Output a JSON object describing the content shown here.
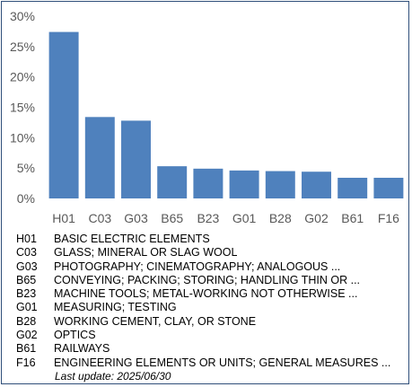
{
  "chart_data": {
    "type": "bar",
    "categories": [
      "H01",
      "C03",
      "G03",
      "B65",
      "B23",
      "G01",
      "B28",
      "G02",
      "B61",
      "F16"
    ],
    "values": [
      27.4,
      13.4,
      12.8,
      5.3,
      4.9,
      4.6,
      4.5,
      4.4,
      3.4,
      3.4
    ],
    "unit": "%",
    "ylim": [
      0,
      30
    ],
    "yticks": [
      0,
      5,
      10,
      15,
      20,
      25,
      30
    ],
    "ytick_labels": [
      "0%",
      "5%",
      "10%",
      "15%",
      "20%",
      "25%",
      "30%"
    ],
    "grid": false,
    "bar_color": "#4f81bd",
    "legend_entries": [
      {
        "code": "H01",
        "description": "BASIC ELECTRIC ELEMENTS"
      },
      {
        "code": "C03",
        "description": "GLASS; MINERAL OR SLAG WOOL"
      },
      {
        "code": "G03",
        "description": "PHOTOGRAPHY; CINEMATOGRAPHY; ANALOGOUS ..."
      },
      {
        "code": "B65",
        "description": "CONVEYING; PACKING; STORING; HANDLING THIN OR ..."
      },
      {
        "code": "B23",
        "description": "MACHINE TOOLS; METAL-WORKING NOT OTHERWISE ..."
      },
      {
        "code": "G01",
        "description": "MEASURING; TESTING"
      },
      {
        "code": "B28",
        "description": "WORKING CEMENT, CLAY, OR STONE"
      },
      {
        "code": "G02",
        "description": "OPTICS"
      },
      {
        "code": "B61",
        "description": "RAILWAYS"
      },
      {
        "code": "F16",
        "description": "ENGINEERING ELEMENTS OR UNITS; GENERAL MEASURES ..."
      }
    ],
    "footnote": "Last update:  2025/06/30"
  }
}
